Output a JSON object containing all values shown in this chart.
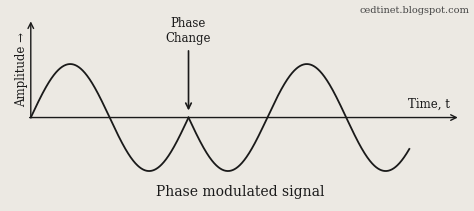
{
  "background_color": "#ece9e3",
  "signal_color": "#1a1a1a",
  "axes_color": "#1a1a1a",
  "phase_change_x": 2.0,
  "freq": 0.5,
  "amplitude": 1.0,
  "xlim": [
    -0.15,
    5.5
  ],
  "ylim": [
    -1.55,
    2.0
  ],
  "xlabel": "Time, t",
  "ylabel": "Amplitude →",
  "title_below": "Phase modulated signal",
  "annotation_text": "Phase\nChange",
  "watermark": "cedtinet.blogspot.com",
  "watermark_fontsize": 7,
  "title_fontsize": 10,
  "label_fontsize": 8.5,
  "annotation_fontsize": 8.5,
  "signal_end": 4.8,
  "phase_shift": 3.14159265358979
}
